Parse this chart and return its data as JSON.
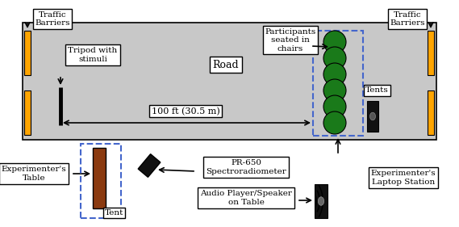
{
  "fig_width": 5.69,
  "fig_height": 2.81,
  "dpi": 100,
  "bg_color": "#ffffff",
  "road_color": "#c8c8c8",
  "barrier_color": "#FFA500",
  "participants_color": "#1a7a1a",
  "red_rect_color": "#8B3A10",
  "tent_dash_color": "#4466cc",
  "road_label": "Road",
  "tripod_label": "Tripod with\nstimuli",
  "traffic_barrier_label": "Traffic\nBarriers",
  "participants_label": "Participants\nseated in\nchairs",
  "tents_label": "Tents",
  "distance_label": "100 ft (30.5 m)",
  "exp_table_label": "Experimenter's\nTable",
  "tent_label": "Tent",
  "pr650_label": "PR-650\nSpectroradiometer",
  "audio_label": "Audio Player/Speaker\non Table",
  "laptop_label": "Experimenter's\nLaptop Station"
}
